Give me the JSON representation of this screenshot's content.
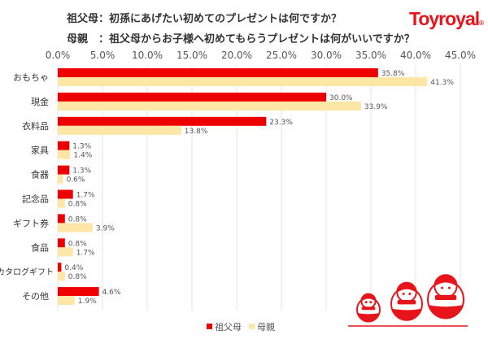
{
  "title_lines": [
    "祖父母：初孫にあげたい初めてのプレゼントは何ですか？",
    "母親　：祖父母からお子様へ初めてもらうプレゼントは何がいいですか？"
  ],
  "logo": "Toyroyal",
  "chart_data": {
    "type": "bar",
    "orientation": "horizontal",
    "categories": [
      "おもちゃ",
      "現金",
      "衣料品",
      "家具",
      "食器",
      "記念品",
      "ギフト券",
      "食品",
      "カタログギフト",
      "その他"
    ],
    "series": [
      {
        "name": "祖父母",
        "color": "#ee0000",
        "values": [
          35.8,
          30.0,
          23.3,
          1.3,
          1.3,
          1.7,
          0.8,
          0.8,
          0.4,
          4.6
        ]
      },
      {
        "name": "母親",
        "color": "#fde6a6",
        "values": [
          41.3,
          33.9,
          13.8,
          1.4,
          0.6,
          0.8,
          3.9,
          1.7,
          0.8,
          1.9
        ]
      }
    ],
    "xlim": [
      0,
      45
    ],
    "ticks": [
      0,
      5,
      10,
      15,
      20,
      25,
      30,
      35,
      40,
      45
    ],
    "tick_labels": [
      "0.0%",
      "5.0%",
      "10.0%",
      "15.0%",
      "20.0%",
      "25.0%",
      "30.0%",
      "35.0%",
      "40.0%",
      "45.0%"
    ],
    "axis_position": "top",
    "grid": true,
    "legend_placement": "bottom"
  }
}
